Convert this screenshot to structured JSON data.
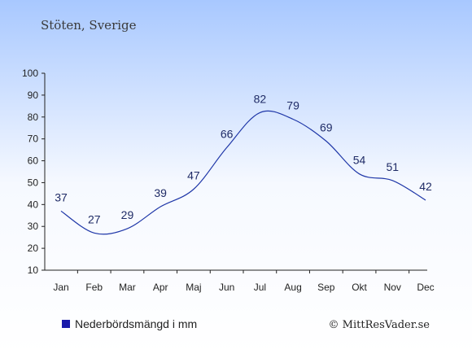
{
  "place_title": "Stöten, Sverige",
  "legend_label": "Nederbördsmängd i mm",
  "copyright": "© MittResVader.se",
  "colors": {
    "bg_top": "#A8C8FF",
    "bg_bottom": "#FFFFFF",
    "line": "#1F37A8",
    "legend_swatch": "#1A1AAA",
    "text": "#1F2B66"
  },
  "chart_data": {
    "type": "line",
    "categories": [
      "Jan",
      "Feb",
      "Mar",
      "Apr",
      "Maj",
      "Jun",
      "Jul",
      "Aug",
      "Sep",
      "Okt",
      "Nov",
      "Dec"
    ],
    "series": [
      {
        "name": "Nederbördsmängd i mm",
        "values": [
          37,
          27,
          29,
          39,
          47,
          66,
          82,
          79,
          69,
          54,
          51,
          42
        ]
      }
    ],
    "y_ticks": [
      10,
      20,
      30,
      40,
      50,
      60,
      70,
      80,
      90,
      100
    ],
    "ylim": [
      10,
      100
    ],
    "grid": false,
    "legend_position": "bottom-left"
  }
}
